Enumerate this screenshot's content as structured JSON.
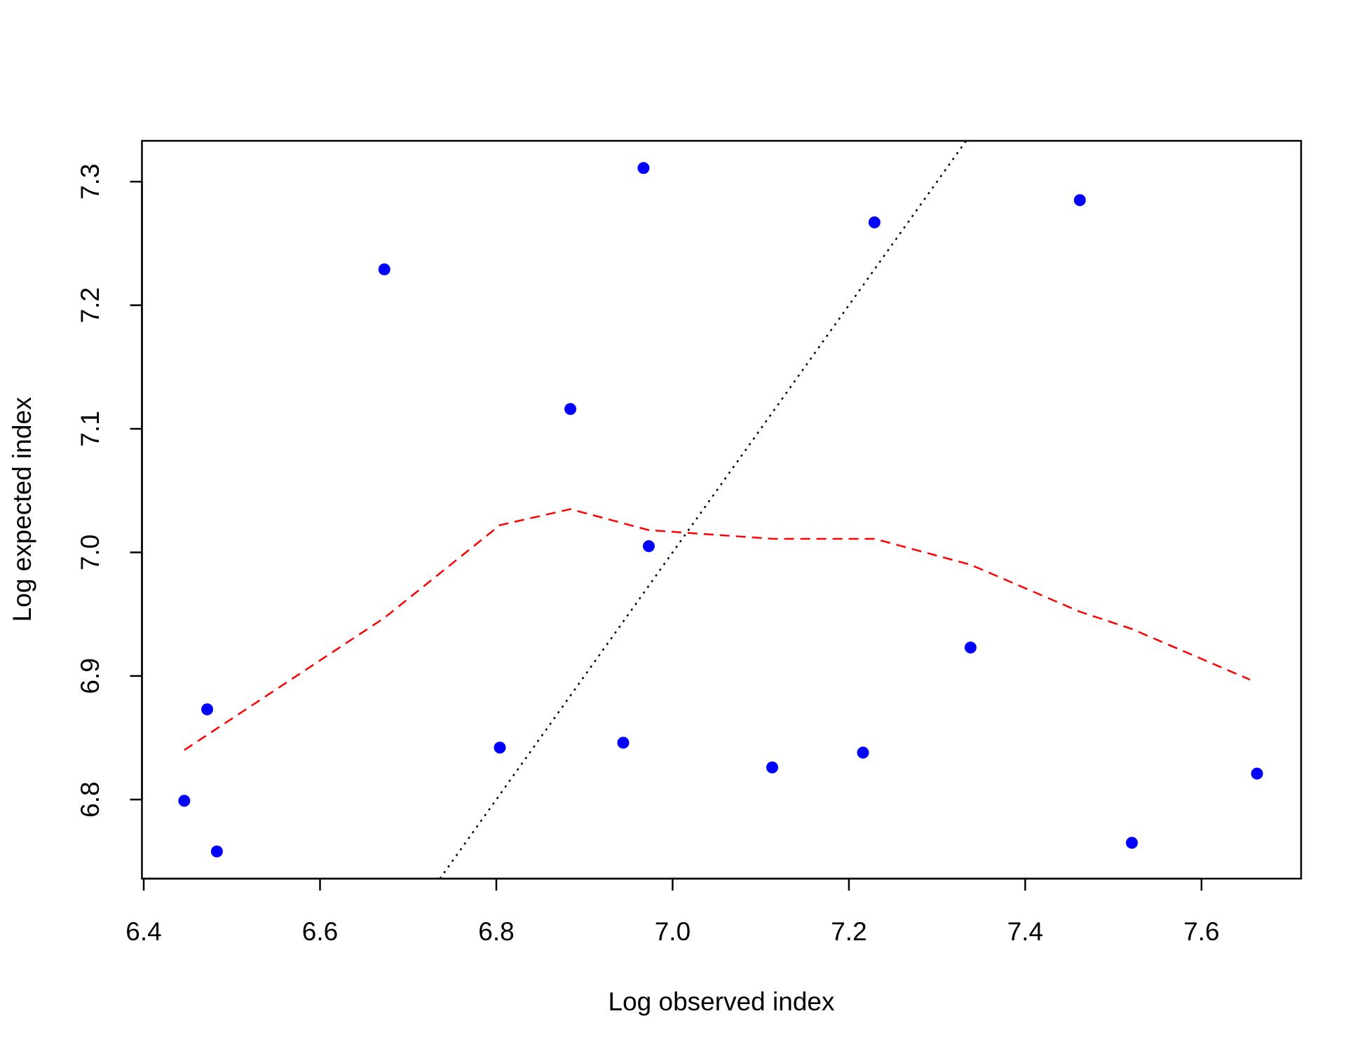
{
  "chart_data": {
    "type": "scatter",
    "x_label": "Log observed index",
    "y_label": "Log expected index",
    "xlim": [
      6.398,
      7.713
    ],
    "ylim": [
      6.736,
      7.333
    ],
    "xticks": [
      {
        "value": 6.4,
        "label": "6.4"
      },
      {
        "value": 6.6,
        "label": "6.6"
      },
      {
        "value": 6.8,
        "label": "6.8"
      },
      {
        "value": 7.0,
        "label": "7.0"
      },
      {
        "value": 7.2,
        "label": "7.2"
      },
      {
        "value": 7.4,
        "label": "7.4"
      },
      {
        "value": 7.6,
        "label": "7.6"
      }
    ],
    "yticks": [
      {
        "value": 6.8,
        "label": "6.8"
      },
      {
        "value": 6.9,
        "label": "6.9"
      },
      {
        "value": 7.0,
        "label": "7.0"
      },
      {
        "value": 7.1,
        "label": "7.1"
      },
      {
        "value": 7.2,
        "label": "7.2"
      },
      {
        "value": 7.3,
        "label": "7.3"
      }
    ],
    "series": [
      {
        "type": "scatter",
        "color": "#0000ff",
        "x": [
          6.446,
          6.472,
          6.483,
          6.673,
          6.804,
          6.884,
          6.944,
          6.967,
          6.973,
          7.113,
          7.216,
          7.229,
          7.338,
          7.462,
          7.521,
          7.663
        ],
        "values": [
          6.799,
          6.873,
          6.758,
          7.229,
          6.842,
          7.116,
          6.846,
          7.311,
          7.005,
          6.826,
          6.838,
          7.267,
          6.923,
          7.285,
          6.765,
          6.821
        ]
      },
      {
        "type": "line",
        "color": "#ff0000",
        "dash": "dashed",
        "x": [
          6.446,
          6.673,
          6.804,
          6.884,
          6.973,
          7.113,
          7.229,
          7.338,
          7.462,
          7.521,
          7.655
        ],
        "values": [
          6.84,
          6.947,
          7.022,
          7.035,
          7.018,
          7.011,
          7.011,
          6.99,
          6.952,
          6.938,
          6.897
        ]
      },
      {
        "type": "line",
        "color": "#000000",
        "dash": "dotted",
        "x": [
          6.736,
          7.333
        ],
        "values": [
          6.736,
          7.333
        ]
      }
    ]
  }
}
